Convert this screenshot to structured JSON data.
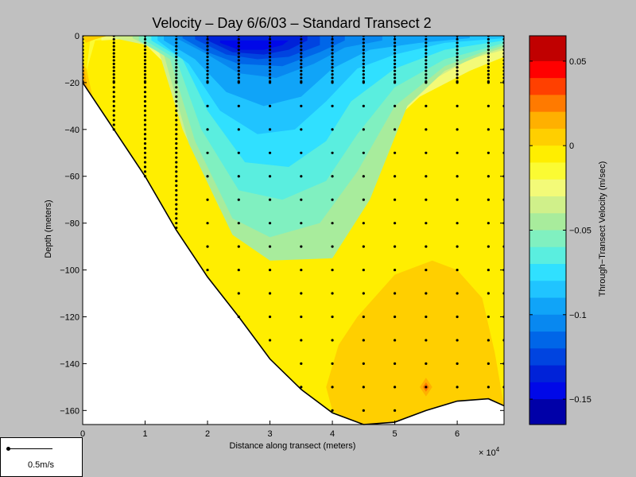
{
  "chart_data": {
    "type": "contour",
    "title": "Velocity – Day 6/6/03 – Standard Transect 2",
    "xlabel": "Distance along transect (meters)",
    "ylabel": "Depth (meters)",
    "x_multiplier_label": "× 10",
    "x_multiplier_exponent": "4",
    "xlim": [
      0,
      6.75
    ],
    "ylim": [
      -166,
      0
    ],
    "x_ticks": [
      {
        "value": 0,
        "label": "0"
      },
      {
        "value": 1,
        "label": "1"
      },
      {
        "value": 2,
        "label": "2"
      },
      {
        "value": 3,
        "label": "3"
      },
      {
        "value": 4,
        "label": "4"
      },
      {
        "value": 5,
        "label": "5"
      },
      {
        "value": 6,
        "label": "6"
      }
    ],
    "y_ticks": [
      {
        "value": 0,
        "label": "0"
      },
      {
        "value": -20,
        "label": "−20"
      },
      {
        "value": -40,
        "label": "−40"
      },
      {
        "value": -60,
        "label": "−60"
      },
      {
        "value": -80,
        "label": "−80"
      },
      {
        "value": -100,
        "label": "−100"
      },
      {
        "value": -120,
        "label": "−120"
      },
      {
        "value": -140,
        "label": "−140"
      },
      {
        "value": -160,
        "label": "−160"
      }
    ],
    "colorbar": {
      "label": "Through−Transect Velocity (m/sec)",
      "range": [
        -0.165,
        0.065
      ],
      "ticks": [
        {
          "value": 0.05,
          "label": "0.05"
        },
        {
          "value": 0,
          "label": "0"
        },
        {
          "value": -0.05,
          "label": "−0.05"
        },
        {
          "value": -0.1,
          "label": "−0.1"
        },
        {
          "value": -0.15,
          "label": "−0.15"
        }
      ],
      "levels": [
        {
          "from": 0.05,
          "to": 0.065,
          "color": "#c00000"
        },
        {
          "from": 0.04,
          "to": 0.05,
          "color": "#ff0000"
        },
        {
          "from": 0.03,
          "to": 0.04,
          "color": "#ff4000"
        },
        {
          "from": 0.02,
          "to": 0.03,
          "color": "#ff7a00"
        },
        {
          "from": 0.01,
          "to": 0.02,
          "color": "#ffb000"
        },
        {
          "from": 0.0,
          "to": 0.01,
          "color": "#ffcf00"
        },
        {
          "from": -0.01,
          "to": 0.0,
          "color": "#ffee00"
        },
        {
          "from": -0.02,
          "to": -0.01,
          "color": "#fbfb33"
        },
        {
          "from": -0.03,
          "to": -0.02,
          "color": "#f3fa78"
        },
        {
          "from": -0.04,
          "to": -0.03,
          "color": "#d0f08a"
        },
        {
          "from": -0.05,
          "to": -0.04,
          "color": "#a8ec9c"
        },
        {
          "from": -0.06,
          "to": -0.05,
          "color": "#80f0c0"
        },
        {
          "from": -0.07,
          "to": -0.06,
          "color": "#5aeedf"
        },
        {
          "from": -0.08,
          "to": -0.07,
          "color": "#30e0ff"
        },
        {
          "from": -0.09,
          "to": -0.08,
          "color": "#20c4ff"
        },
        {
          "from": -0.1,
          "to": -0.09,
          "color": "#10a4f8"
        },
        {
          "from": -0.11,
          "to": -0.1,
          "color": "#0888f0"
        },
        {
          "from": -0.12,
          "to": -0.11,
          "color": "#0066e8"
        },
        {
          "from": -0.13,
          "to": -0.12,
          "color": "#0044e0"
        },
        {
          "from": -0.14,
          "to": -0.13,
          "color": "#0022d8"
        },
        {
          "from": -0.15,
          "to": -0.14,
          "color": "#0008e8"
        },
        {
          "from": -0.165,
          "to": -0.15,
          "color": "#0000a8"
        }
      ]
    },
    "bottom_profile": [
      [
        0,
        -20
      ],
      [
        0.5,
        -40
      ],
      [
        1,
        -60
      ],
      [
        1.5,
        -83
      ],
      [
        2,
        -103
      ],
      [
        2.5,
        -120
      ],
      [
        3,
        -138
      ],
      [
        3.5,
        -151
      ],
      [
        4,
        -161
      ],
      [
        4.5,
        -166
      ],
      [
        5,
        -165
      ],
      [
        5.5,
        -160
      ],
      [
        6,
        -156
      ],
      [
        6.5,
        -155
      ],
      [
        6.75,
        -158
      ]
    ],
    "regions": [
      {
        "level": -0.01,
        "polygon": [
          [
            0,
            0
          ],
          [
            6.75,
            0
          ],
          [
            6.75,
            -166
          ],
          [
            0,
            -166
          ]
        ]
      },
      {
        "level": -0.02,
        "polygon": [
          [
            0.06,
            -15
          ],
          [
            0.2,
            -2
          ],
          [
            0.8,
            -1
          ],
          [
            1.2,
            -5
          ],
          [
            1.6,
            -26
          ],
          [
            2.3,
            -40
          ],
          [
            3,
            -45
          ],
          [
            4,
            -42
          ],
          [
            5.2,
            -28
          ],
          [
            6.2,
            -14
          ],
          [
            6.75,
            -8
          ],
          [
            6.75,
            0
          ],
          [
            0.2,
            0
          ],
          [
            0.12,
            -2
          ]
        ]
      },
      {
        "level": -0.03,
        "polygon": [
          [
            0.3,
            -2
          ],
          [
            0.9,
            -1
          ],
          [
            1.4,
            -14
          ],
          [
            1.6,
            -34
          ],
          [
            2.2,
            -60
          ],
          [
            3,
            -68
          ],
          [
            4.2,
            -56
          ],
          [
            5,
            -36
          ],
          [
            5.4,
            -26
          ],
          [
            6.2,
            -15
          ],
          [
            6.75,
            -9
          ],
          [
            6.75,
            0
          ],
          [
            0.3,
            0
          ]
        ]
      },
      {
        "level": -0.04,
        "polygon": [
          [
            0.5,
            -1
          ],
          [
            1.2,
            -5
          ],
          [
            1.6,
            -40
          ],
          [
            2.2,
            -74
          ],
          [
            3,
            -78
          ],
          [
            4,
            -63
          ],
          [
            4.7,
            -42
          ],
          [
            5.4,
            -22
          ],
          [
            6.2,
            -10
          ],
          [
            6.75,
            -6
          ],
          [
            6.75,
            0
          ],
          [
            0.5,
            0
          ]
        ]
      },
      {
        "level": -0.05,
        "polygon": [
          [
            0.8,
            -1
          ],
          [
            1.3,
            -8
          ],
          [
            1.7,
            -46
          ],
          [
            2.4,
            -85
          ],
          [
            3,
            -96
          ],
          [
            4,
            -95
          ],
          [
            4.6,
            -70
          ],
          [
            5.2,
            -30
          ],
          [
            5.8,
            -15
          ],
          [
            6.4,
            -8
          ],
          [
            6.75,
            -5
          ],
          [
            6.75,
            0
          ],
          [
            0.8,
            0
          ]
        ]
      },
      {
        "level": -0.06,
        "polygon": [
          [
            0.9,
            -2
          ],
          [
            1.4,
            -10
          ],
          [
            1.8,
            -45
          ],
          [
            2.4,
            -78
          ],
          [
            3,
            -86
          ],
          [
            3.8,
            -80
          ],
          [
            4.4,
            -58
          ],
          [
            5,
            -30
          ],
          [
            5.8,
            -13
          ],
          [
            6.4,
            -7
          ],
          [
            6.75,
            -4
          ],
          [
            6.75,
            0
          ],
          [
            0.9,
            0
          ]
        ]
      },
      {
        "level": -0.07,
        "polygon": [
          [
            1.0,
            -2
          ],
          [
            1.5,
            -10
          ],
          [
            1.9,
            -40
          ],
          [
            2.5,
            -66
          ],
          [
            3.2,
            -70
          ],
          [
            3.9,
            -62
          ],
          [
            4.4,
            -42
          ],
          [
            5,
            -22
          ],
          [
            5.8,
            -10
          ],
          [
            6.5,
            -5
          ],
          [
            6.75,
            -3
          ],
          [
            6.75,
            0
          ],
          [
            1,
            0
          ]
        ]
      },
      {
        "level": -0.08,
        "polygon": [
          [
            1.1,
            -2
          ],
          [
            1.6,
            -10
          ],
          [
            2,
            -32
          ],
          [
            2.6,
            -54
          ],
          [
            3.3,
            -56
          ],
          [
            3.9,
            -45
          ],
          [
            4.3,
            -28
          ],
          [
            5,
            -14
          ],
          [
            5.8,
            -6
          ],
          [
            6.75,
            -2
          ],
          [
            6.75,
            0
          ],
          [
            1.1,
            0
          ]
        ]
      },
      {
        "level": -0.09,
        "polygon": [
          [
            1.2,
            -2
          ],
          [
            1.7,
            -12
          ],
          [
            2.2,
            -32
          ],
          [
            2.8,
            -42
          ],
          [
            3.4,
            -40
          ],
          [
            3.9,
            -28
          ],
          [
            4.4,
            -14
          ],
          [
            5,
            -8
          ],
          [
            5.8,
            -3
          ],
          [
            6.75,
            -1
          ],
          [
            6.75,
            0
          ],
          [
            1.2,
            0
          ]
        ]
      },
      {
        "level": -0.1,
        "polygon": [
          [
            1.3,
            -2
          ],
          [
            1.8,
            -10
          ],
          [
            2.3,
            -24
          ],
          [
            2.9,
            -30
          ],
          [
            3.5,
            -26
          ],
          [
            4,
            -14
          ],
          [
            4.6,
            -6
          ],
          [
            5.4,
            -3
          ],
          [
            6.2,
            -1
          ],
          [
            6.2,
            0
          ],
          [
            1.3,
            0
          ]
        ]
      },
      {
        "level": -0.11,
        "polygon": [
          [
            1.5,
            -1
          ],
          [
            2,
            -8
          ],
          [
            2.5,
            -16
          ],
          [
            3.1,
            -18
          ],
          [
            3.7,
            -12
          ],
          [
            4.2,
            -5
          ],
          [
            4.8,
            -2
          ],
          [
            4.8,
            0
          ],
          [
            1.5,
            0
          ]
        ]
      },
      {
        "level": -0.12,
        "polygon": [
          [
            1.6,
            -1
          ],
          [
            2,
            -7
          ],
          [
            2.5,
            -12
          ],
          [
            3.2,
            -13
          ],
          [
            3.8,
            -7
          ],
          [
            4.2,
            -2
          ],
          [
            4.2,
            0
          ],
          [
            1.6,
            0
          ]
        ]
      },
      {
        "level": -0.13,
        "polygon": [
          [
            1.8,
            -1.5
          ],
          [
            2.3,
            -8
          ],
          [
            2.8,
            -10
          ],
          [
            3.3,
            -9
          ],
          [
            3.8,
            -4
          ],
          [
            3.8,
            0
          ],
          [
            1.8,
            0
          ]
        ]
      },
      {
        "level": -0.14,
        "polygon": [
          [
            2.0,
            -2
          ],
          [
            2.4,
            -7
          ],
          [
            2.9,
            -8
          ],
          [
            3.3,
            -6
          ],
          [
            3.6,
            -2
          ],
          [
            3.6,
            0
          ],
          [
            2.0,
            0
          ]
        ]
      },
      {
        "level": -0.15,
        "polygon": [
          [
            2.2,
            -3
          ],
          [
            2.5,
            -6
          ],
          [
            2.9,
            -6
          ],
          [
            3.2,
            -4
          ],
          [
            3.3,
            -2
          ],
          [
            2.2,
            -2
          ]
        ]
      },
      {
        "level": 0.0,
        "polygon": [
          [
            0,
            -20
          ],
          [
            0,
            -12
          ],
          [
            0.06,
            -14
          ],
          [
            0.15,
            -25
          ],
          [
            0.2,
            -32
          ],
          [
            0.18,
            -38
          ],
          [
            0,
            -20
          ]
        ]
      },
      {
        "level": 0.01,
        "polygon": [
          [
            0,
            -20
          ],
          [
            0,
            -10
          ],
          [
            0.05,
            -18
          ],
          [
            0.1,
            -26
          ],
          [
            0,
            -20
          ]
        ]
      },
      {
        "level": 0.0,
        "polygon": [
          [
            0,
            0
          ],
          [
            0.4,
            0
          ],
          [
            0.2,
            -1.5
          ],
          [
            0.05,
            -3
          ]
        ]
      },
      {
        "level": 0.0,
        "polygon": [
          [
            3.9,
            -150
          ],
          [
            4.1,
            -132
          ],
          [
            4.4,
            -120
          ],
          [
            5.0,
            -102
          ],
          [
            5.6,
            -96
          ],
          [
            6.0,
            -100
          ],
          [
            6.4,
            -112
          ],
          [
            6.6,
            -135
          ],
          [
            6.75,
            -158
          ],
          [
            6.5,
            -155
          ],
          [
            6.0,
            -156
          ],
          [
            5.5,
            -160
          ],
          [
            5.0,
            -165
          ],
          [
            4.5,
            -166
          ],
          [
            4.2,
            -163
          ],
          [
            4.0,
            -160
          ]
        ]
      },
      {
        "level": 0.01,
        "polygon": [
          [
            5.4,
            -150
          ],
          [
            5.5,
            -146
          ],
          [
            5.6,
            -150
          ],
          [
            5.5,
            -154
          ]
        ]
      },
      {
        "level": 0.02,
        "polygon": [
          [
            5.45,
            -150
          ],
          [
            5.5,
            -148
          ],
          [
            5.55,
            -150
          ],
          [
            5.5,
            -152
          ]
        ]
      }
    ],
    "stations": [
      {
        "x": 0.0,
        "depth": -20
      },
      {
        "x": 0.5,
        "depth": -40
      },
      {
        "x": 1.0,
        "depth": -60
      },
      {
        "x": 1.5,
        "depth": -82
      },
      {
        "x": 2.0,
        "depth": -102
      },
      {
        "x": 2.5,
        "depth": -120
      },
      {
        "x": 3.0,
        "depth": -138
      },
      {
        "x": 3.5,
        "depth": -150
      },
      {
        "x": 4.0,
        "depth": -160
      },
      {
        "x": 4.5,
        "depth": -164
      },
      {
        "x": 5.0,
        "depth": -164
      },
      {
        "x": 5.5,
        "depth": -158
      },
      {
        "x": 6.0,
        "depth": -155
      },
      {
        "x": 6.5,
        "depth": -155
      },
      {
        "x": 6.75,
        "depth": -158
      }
    ]
  },
  "scale_bar": {
    "label": "0.5m/s"
  }
}
